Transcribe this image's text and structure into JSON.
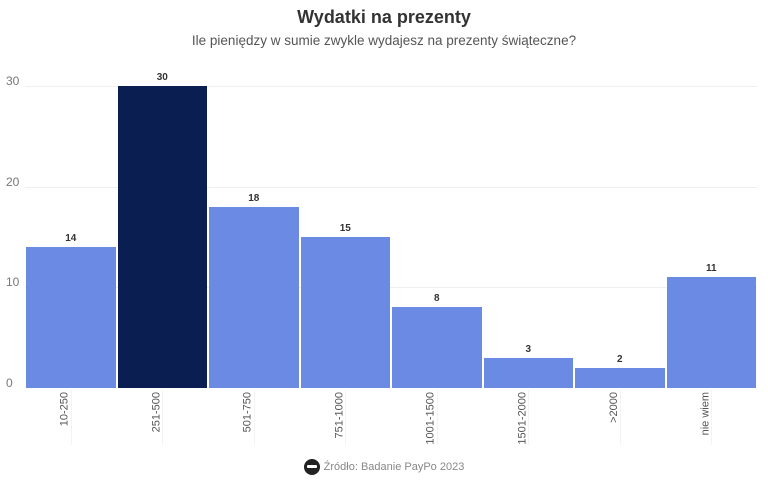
{
  "title": "Wydatki na prezenty",
  "subtitle": "Ile pieniędzy w sumie zwykle wydajesz na prezenty świąteczne?",
  "source": "Źródło: Badanie PayPo 2023",
  "colors": {
    "default_bar": "#6a8ae4",
    "highlight_bar": "#0b1e52"
  },
  "chart_data": {
    "type": "bar",
    "title": "Wydatki na prezenty",
    "subtitle": "Ile pieniędzy w sumie zwykle wydajesz na prezenty świąteczne?",
    "categories": [
      "10-250",
      "251-500",
      "501-750",
      "751-1000",
      "1001-1500",
      "1501-2000",
      ">2000",
      "nie wiem"
    ],
    "values": [
      14,
      30,
      18,
      15,
      8,
      3,
      2,
      11
    ],
    "highlighted": [
      false,
      true,
      false,
      false,
      false,
      false,
      false,
      false
    ],
    "xlabel": "",
    "ylabel": "",
    "ylim": [
      0,
      30
    ],
    "yticks": [
      0,
      10,
      20,
      30
    ],
    "grid": true,
    "legend": "none",
    "data_labels": true,
    "source": "Źródło: Badanie PayPo 2023"
  }
}
